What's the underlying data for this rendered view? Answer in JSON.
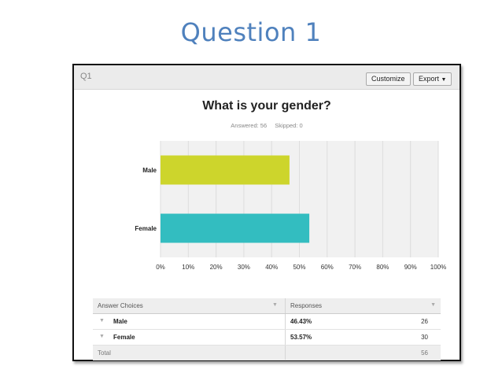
{
  "slide": {
    "title": "Question 1"
  },
  "panel": {
    "question_id": "Q1",
    "buttons": {
      "customize": "Customize",
      "export": "Export"
    }
  },
  "chart_data": {
    "type": "bar",
    "orientation": "horizontal",
    "title": "What is your gender?",
    "summary": {
      "answered": "Answered: 56",
      "skipped": "Skipped: 0"
    },
    "categories": [
      "Male",
      "Female"
    ],
    "values": [
      46.43,
      53.57
    ],
    "colors": [
      "#cdd52c",
      "#33bdc0"
    ],
    "xlim": [
      0,
      100
    ],
    "ticks": [
      "0%",
      "10%",
      "20%",
      "30%",
      "40%",
      "50%",
      "60%",
      "70%",
      "80%",
      "90%",
      "100%"
    ],
    "grid": true
  },
  "answers": {
    "headers": {
      "choice": "Answer Choices",
      "responses": "Responses"
    },
    "rows": [
      {
        "choice": "Male",
        "percent": "46.43%",
        "count": "26"
      },
      {
        "choice": "Female",
        "percent": "53.57%",
        "count": "30"
      }
    ],
    "total": {
      "label": "Total",
      "count": "56"
    }
  }
}
